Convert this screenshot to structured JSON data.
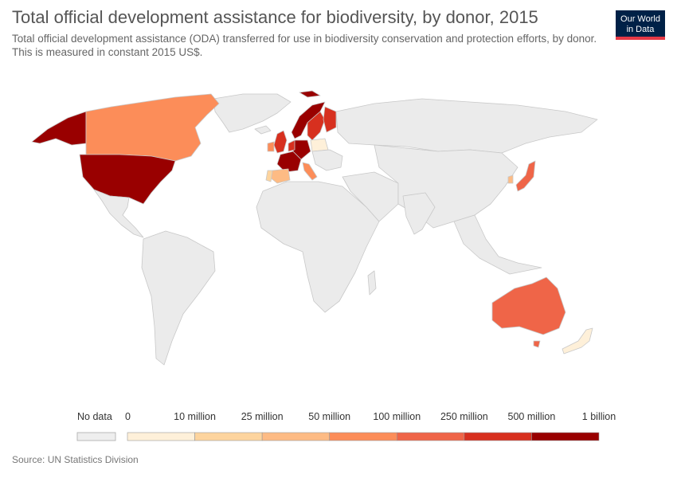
{
  "title": "Total official development assistance for biodiversity, by donor, 2015",
  "subtitle": "Total official development assistance (ODA) transferred for use in biodiversity conservation and protection efforts, by donor. This is measured in constant 2015 US$.",
  "logo": {
    "line1": "Our World",
    "line2": "in Data"
  },
  "source": "Source: UN Statistics Division",
  "legend": {
    "no_data_label": "No data",
    "no_data_color": "#eeeeee",
    "bin_labels": [
      "0",
      "10 million",
      "25 million",
      "50 million",
      "100 million",
      "250 million",
      "500 million",
      "1 billion"
    ],
    "bin_colors": [
      "#fef0d9",
      "#fdd49e",
      "#fdbb84",
      "#fc8d59",
      "#ef6548",
      "#d7301f",
      "#990000"
    ]
  },
  "colors": {
    "land": "#ebebeb",
    "border": "#c8c8c8"
  }
}
